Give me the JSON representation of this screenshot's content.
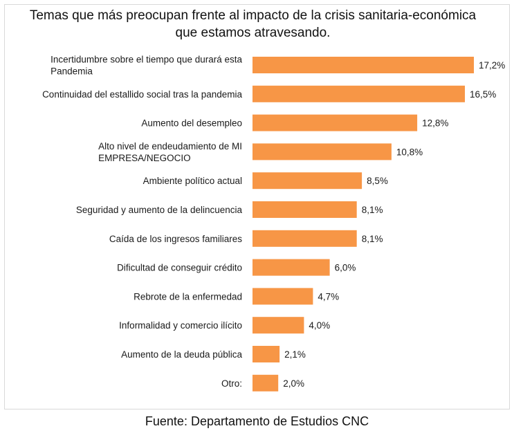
{
  "chart_data": {
    "type": "bar",
    "orientation": "horizontal",
    "title": "Temas que más  preocupan frente al impacto de la crisis sanitaria-económica que estamos atravesando.",
    "categories": [
      "Incertidumbre sobre el tiempo que durará esta Pandemia",
      "Continuidad del estallido social tras la pandemia",
      "Aumento del desempleo",
      "Alto nivel de endeudamiento de MI EMPRESA/NEGOCIO",
      "Ambiente político actual",
      "Seguridad y aumento de la delincuencia",
      "Caída de los ingresos familiares",
      "Dificultad de conseguir crédito",
      "Rebrote de la enfermedad",
      "Informalidad y comercio ilícito",
      "Aumento de la deuda pública",
      "Otro:"
    ],
    "category_lines": [
      [
        "Incertidumbre sobre el tiempo que durará esta",
        "Pandemia"
      ],
      [
        "Continuidad del estallido social tras la pandemia"
      ],
      [
        "Aumento del desempleo"
      ],
      [
        "Alto nivel de endeudamiento de MI",
        "EMPRESA/NEGOCIO"
      ],
      [
        "Ambiente político actual"
      ],
      [
        "Seguridad y aumento de la delincuencia"
      ],
      [
        "Caída de los ingresos familiares"
      ],
      [
        "Dificultad de conseguir crédito"
      ],
      [
        "Rebrote de la enfermedad"
      ],
      [
        "Informalidad y comercio ilícito"
      ],
      [
        "Aumento de la deuda pública"
      ],
      [
        "Otro:"
      ]
    ],
    "values": [
      17.2,
      16.5,
      12.8,
      10.8,
      8.5,
      8.1,
      8.1,
      6.0,
      4.7,
      4.0,
      2.1,
      2.0
    ],
    "data_labels": [
      "17,2%",
      "16,5%",
      "12,8%",
      "10,8%",
      "8,5%",
      "8,1%",
      "8,1%",
      "6,0%",
      "4,7%",
      "4,0%",
      "2,1%",
      "2,0%"
    ],
    "xlabel": "",
    "ylabel": "",
    "xlim": [
      0,
      17.2
    ],
    "grid": false,
    "legend": "none",
    "bar_color": "#F79646"
  },
  "source": "Fuente: Departamento de Estudios CNC"
}
